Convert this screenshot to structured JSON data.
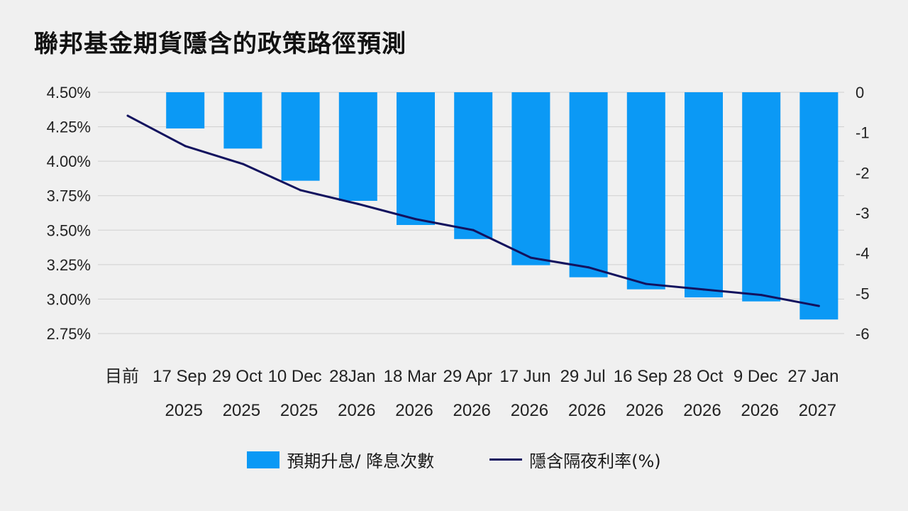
{
  "title": "聯邦基金期貨隱含的政策路徑預測",
  "legend": {
    "bars_label": "預期升息/ 降息次數",
    "line_label": "隱含隔夜利率(%)"
  },
  "colors": {
    "bar": "#0b99f5",
    "line": "#12125e",
    "grid": "#cfcfcf",
    "background": "#f0f0f0"
  },
  "chart_data": {
    "type": "bar+line",
    "title": "聯邦基金期貨隱含的政策路徑預測",
    "categories": [
      [
        "目前",
        ""
      ],
      [
        "17 Sep",
        "2025"
      ],
      [
        "29 Oct",
        "2025"
      ],
      [
        "10 Dec",
        "2025"
      ],
      [
        "28Jan",
        "2026"
      ],
      [
        "18 Mar",
        "2026"
      ],
      [
        "29 Apr",
        "2026"
      ],
      [
        "17 Jun",
        "2026"
      ],
      [
        "29 Jul",
        "2026"
      ],
      [
        "16 Sep",
        "2026"
      ],
      [
        "28 Oct",
        "2026"
      ],
      [
        "9 Dec",
        "2026"
      ],
      [
        "27 Jan",
        "2027"
      ]
    ],
    "series": [
      {
        "name": "預期升息/ 降息次數",
        "kind": "bar",
        "axis": "right",
        "values": [
          null,
          -0.9,
          -1.4,
          -2.2,
          -2.7,
          -3.3,
          -3.65,
          -4.3,
          -4.6,
          -4.9,
          -5.1,
          -5.2,
          -5.65
        ]
      },
      {
        "name": "隱含隔夜利率(%)",
        "kind": "line",
        "axis": "left",
        "values": [
          4.33,
          4.11,
          3.98,
          3.79,
          3.69,
          3.58,
          3.5,
          3.3,
          3.23,
          3.11,
          3.07,
          3.03,
          2.95
        ]
      }
    ],
    "left_axis": {
      "ylim": [
        2.75,
        4.5
      ],
      "ticks": [
        4.5,
        4.25,
        4.0,
        3.75,
        3.5,
        3.25,
        3.0,
        2.75
      ],
      "tick_labels": [
        "4.50%",
        "4.25%",
        "4.00%",
        "3.75%",
        "3.50%",
        "3.25%",
        "3.00%",
        "2.75%"
      ]
    },
    "right_axis": {
      "ylim": [
        -6,
        0
      ],
      "ticks": [
        0,
        -1,
        -2,
        -3,
        -4,
        -5,
        -6
      ],
      "tick_labels": [
        "0",
        "-1",
        "-2",
        "-3",
        "-4",
        "-5",
        "-6"
      ]
    },
    "grid": true,
    "legend_position": "bottom-center"
  }
}
